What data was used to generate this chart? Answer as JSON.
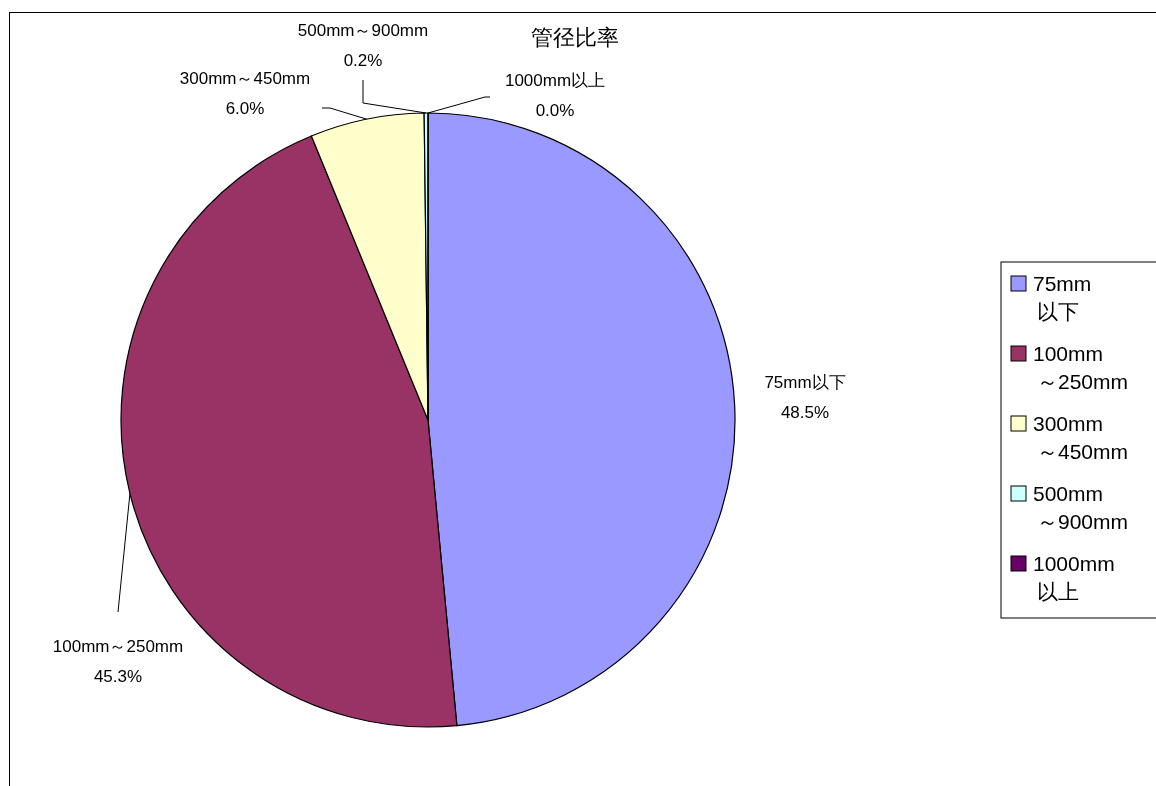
{
  "chart_data": {
    "type": "pie",
    "title": "管径比率",
    "categories": [
      "75mm以下",
      "100mm～250mm",
      "300mm～450mm",
      "500mm～900mm",
      "1000mm以上"
    ],
    "values": [
      48.5,
      45.3,
      6.0,
      0.2,
      0.0
    ],
    "value_labels": [
      "48.5%",
      "45.3%",
      "6.0%",
      "0.2%",
      "0.0%"
    ],
    "colors": [
      "#9999ff",
      "#993366",
      "#ffffcc",
      "#ccffff",
      "#660066"
    ],
    "legend": "right"
  }
}
